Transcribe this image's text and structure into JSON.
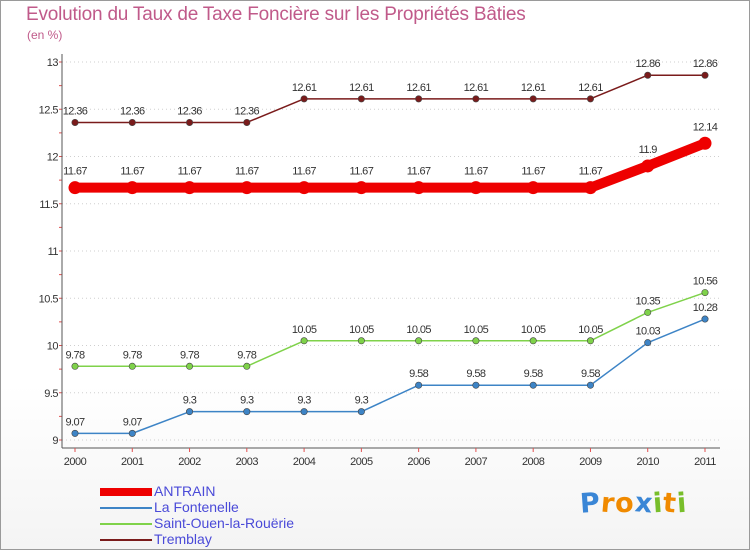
{
  "chart_data": {
    "type": "line",
    "title": "Evolution du Taux de Taxe Foncière sur les Propriétés Bâties",
    "ylabel": "(en %)",
    "xlabel": "",
    "ylim": [
      9,
      13
    ],
    "yticks": [
      "9",
      "9.5",
      "10",
      "10.5",
      "11",
      "11.5",
      "12",
      "12.5",
      "13"
    ],
    "categories": [
      "2000",
      "2001",
      "2002",
      "2003",
      "2004",
      "2005",
      "2006",
      "2007",
      "2008",
      "2009",
      "2010",
      "2011"
    ],
    "series": [
      {
        "name": "Tremblay",
        "color": "#7a1b1b",
        "values": [
          12.36,
          12.36,
          12.36,
          12.36,
          12.61,
          12.61,
          12.61,
          12.61,
          12.61,
          12.61,
          12.86,
          12.86
        ],
        "labels": [
          "12.36",
          "12.36",
          "12.36",
          "12.36",
          "12.61",
          "12.61",
          "12.61",
          "12.61",
          "12.61",
          "12.61",
          "12.86",
          "12.86"
        ]
      },
      {
        "name": "ANTRAIN",
        "color": "#ee0000",
        "values": [
          11.67,
          11.67,
          11.67,
          11.67,
          11.67,
          11.67,
          11.67,
          11.67,
          11.67,
          11.67,
          11.9,
          12.14
        ],
        "labels": [
          "11.67",
          "11.67",
          "11.67",
          "11.67",
          "11.67",
          "11.67",
          "11.67",
          "11.67",
          "11.67",
          "11.67",
          "11.9",
          "12.14"
        ]
      },
      {
        "name": "Saint-Ouen-la-Rouërie",
        "color": "#7fd24a",
        "values": [
          9.78,
          9.78,
          9.78,
          9.78,
          10.05,
          10.05,
          10.05,
          10.05,
          10.05,
          10.05,
          10.35,
          10.56
        ],
        "labels": [
          "9.78",
          "9.78",
          "9.78",
          "9.78",
          "10.05",
          "10.05",
          "10.05",
          "10.05",
          "10.05",
          "10.05",
          "10.35",
          "10.56"
        ]
      },
      {
        "name": "La Fontenelle",
        "color": "#3d84c6",
        "values": [
          9.07,
          9.07,
          9.3,
          9.3,
          9.3,
          9.3,
          9.58,
          9.58,
          9.58,
          9.58,
          10.03,
          10.28
        ],
        "labels": [
          "9.07",
          "9.07",
          "9.3",
          "9.3",
          "9.3",
          "9.3",
          "9.58",
          "9.58",
          "9.58",
          "9.58",
          "10.03",
          "10.28"
        ]
      }
    ],
    "legend": [
      "ANTRAIN",
      "La Fontenelle",
      "Saint-Ouen-la-Rouërie",
      "Tremblay"
    ],
    "legend_position": "bottom-left"
  },
  "brand": {
    "logo_letters": [
      "P",
      "r",
      "o",
      "x",
      "i",
      "t",
      "i"
    ],
    "logo_colors": [
      "#3a86d6",
      "#f08a00",
      "#f08a00",
      "#3a86d6",
      "#78be2a",
      "#f08a00",
      "#78be2a"
    ]
  }
}
